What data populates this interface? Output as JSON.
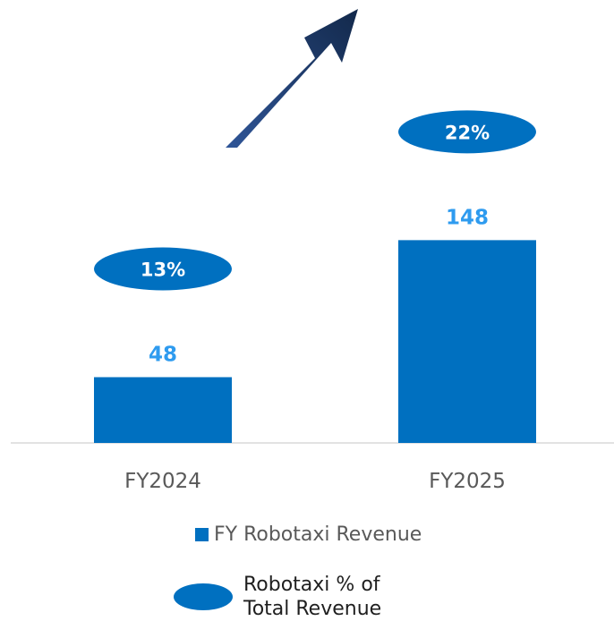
{
  "chart_data": {
    "type": "bar",
    "categories": [
      "FY2024",
      "FY2025"
    ],
    "series": [
      {
        "name": "FY Robotaxi Revenue",
        "values": [
          48,
          148
        ]
      },
      {
        "name": "Robotaxi % of Total Revenue",
        "values": [
          "13%",
          "22%"
        ]
      }
    ],
    "value_labels": [
      "48",
      "148"
    ],
    "percent_labels": [
      "13%",
      "22%"
    ],
    "ylim": [
      0,
      160
    ],
    "grid": false,
    "legend_position": "bottom",
    "colors": {
      "bar": "#0070c0",
      "value_label": "#2e9bef",
      "arrow": "#1f3864",
      "axis": "#d9d9d9"
    }
  },
  "legend": {
    "bar_label": "FY Robotaxi Revenue",
    "ellipse_label_line1": "Robotaxi % of",
    "ellipse_label_line2": "Total Revenue"
  }
}
